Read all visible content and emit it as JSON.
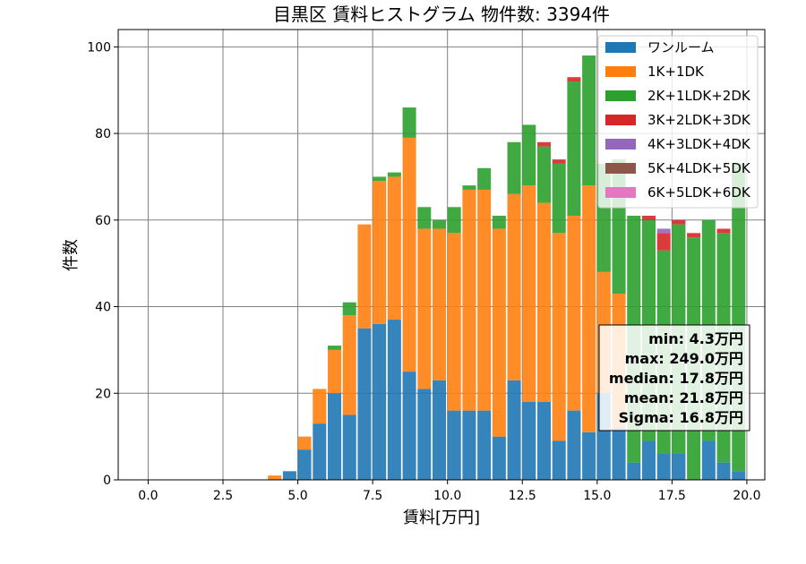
{
  "chart_data": {
    "type": "bar",
    "stacked": true,
    "title": "目黒区 賃料ヒストグラム 物件数: 3394件",
    "xlabel": "賃料[万円]",
    "ylabel": "件数",
    "xlim": [
      -1.0,
      20.6
    ],
    "ylim": [
      0,
      104
    ],
    "x_ticks": [
      0.0,
      2.5,
      5.0,
      7.5,
      10.0,
      12.5,
      15.0,
      17.5,
      20.0
    ],
    "x_tick_labels": [
      "0.0",
      "2.5",
      "5.0",
      "7.5",
      "10.0",
      "12.5",
      "15.0",
      "17.5",
      "20.0"
    ],
    "y_ticks": [
      0,
      20,
      40,
      60,
      80,
      100
    ],
    "y_tick_labels": [
      "0",
      "20",
      "40",
      "60",
      "80",
      "100"
    ],
    "grid": true,
    "legend_position": "top-right",
    "bin_width": 0.5,
    "x": [
      3.5,
      4.0,
      4.5,
      5.0,
      5.5,
      6.0,
      6.5,
      7.0,
      7.5,
      8.0,
      8.5,
      9.0,
      9.5,
      10.0,
      10.5,
      11.0,
      11.5,
      12.0,
      12.5,
      13.0,
      13.5,
      14.0,
      14.5,
      15.0,
      15.5,
      16.0,
      16.5,
      17.0,
      17.5,
      18.0,
      18.5,
      19.0,
      19.5
    ],
    "series": [
      {
        "name": "ワンルーム",
        "color": "#1f77b4",
        "values": [
          0,
          0,
          2,
          7,
          13,
          20,
          15,
          35,
          36,
          37,
          25,
          21,
          23,
          16,
          16,
          16,
          10,
          23,
          18,
          18,
          9,
          16,
          11,
          20,
          12,
          4,
          9,
          6,
          6,
          0,
          9,
          4,
          2
        ]
      },
      {
        "name": "1K+1DK",
        "color": "#ff7f0e",
        "values": [
          0,
          1,
          0,
          3,
          8,
          10,
          23,
          24,
          33,
          33,
          54,
          37,
          35,
          41,
          51,
          51,
          48,
          43,
          50,
          46,
          48,
          45,
          57,
          28,
          31,
          0,
          0,
          0,
          0,
          0,
          0,
          0,
          0
        ]
      },
      {
        "name": "2K+1LDK+2DK",
        "color": "#2ca02c",
        "values": [
          0,
          0,
          0,
          0,
          0,
          1,
          3,
          0,
          1,
          1,
          7,
          5,
          2,
          6,
          1,
          5,
          3,
          12,
          14,
          13,
          16,
          31,
          30,
          25,
          31,
          57,
          51,
          47,
          53,
          56,
          51,
          53,
          71
        ]
      },
      {
        "name": "3K+2LDK+3DK",
        "color": "#d62728",
        "values": [
          0,
          0,
          0,
          0,
          0,
          0,
          0,
          0,
          0,
          0,
          0,
          0,
          0,
          0,
          0,
          0,
          0,
          0,
          0,
          1,
          1,
          1,
          0,
          0,
          0,
          0,
          1,
          4,
          1,
          1,
          0,
          1,
          0
        ]
      },
      {
        "name": "4K+3LDK+4DK",
        "color": "#9467bd",
        "values": [
          0,
          0,
          0,
          0,
          0,
          0,
          0,
          0,
          0,
          0,
          0,
          0,
          0,
          0,
          0,
          0,
          0,
          0,
          0,
          0,
          0,
          0,
          0,
          0,
          0,
          0,
          0,
          1,
          0,
          0,
          0,
          0,
          0
        ]
      },
      {
        "name": "5K+4LDK+5DK",
        "color": "#8c564b",
        "values": [
          0,
          0,
          0,
          0,
          0,
          0,
          0,
          0,
          0,
          0,
          0,
          0,
          0,
          0,
          0,
          0,
          0,
          0,
          0,
          0,
          0,
          0,
          0,
          0,
          0,
          0,
          0,
          0,
          0,
          0,
          0,
          0,
          0
        ]
      },
      {
        "name": "6K+5LDK+6DK",
        "color": "#e377c2",
        "values": [
          0,
          0,
          0,
          0,
          0,
          0,
          0,
          0,
          0,
          0,
          0,
          0,
          0,
          0,
          0,
          0,
          0,
          0,
          0,
          0,
          0,
          0,
          0,
          0,
          0,
          0,
          0,
          0,
          0,
          0,
          0,
          0,
          0
        ]
      }
    ],
    "stats": [
      "min: 4.3万円",
      "max: 249.0万円",
      "median: 17.8万円",
      "mean: 21.8万円",
      "Sigma: 16.8万円"
    ]
  }
}
